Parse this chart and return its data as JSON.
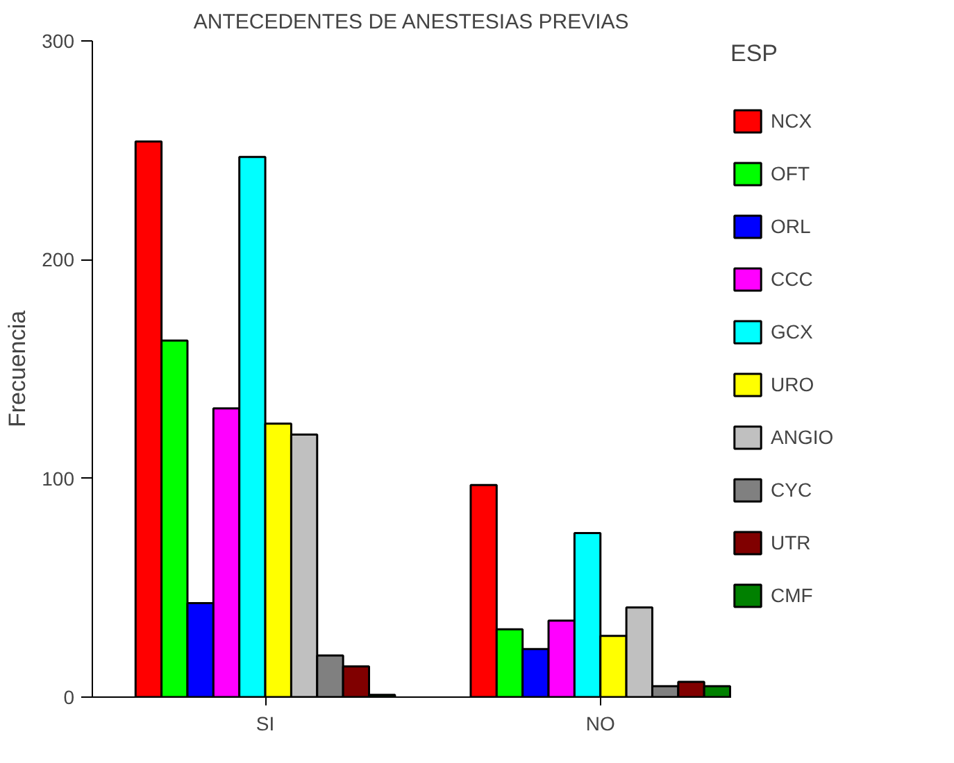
{
  "chart_data": {
    "type": "bar",
    "title": "ANTECEDENTES DE ANESTESIAS PREVIAS",
    "ylabel": "Frecuencia",
    "legend_title": "ESP",
    "categories": [
      "SI",
      "NO"
    ],
    "series": [
      {
        "name": "NCX",
        "color": "#ff0000",
        "values": [
          254,
          97
        ]
      },
      {
        "name": "OFT",
        "color": "#00ff00",
        "values": [
          163,
          31
        ]
      },
      {
        "name": "ORL",
        "color": "#0000ff",
        "values": [
          43,
          22
        ]
      },
      {
        "name": "CCC",
        "color": "#ff00ff",
        "values": [
          132,
          35
        ]
      },
      {
        "name": "GCX",
        "color": "#00ffff",
        "values": [
          247,
          75
        ]
      },
      {
        "name": "URO",
        "color": "#ffff00",
        "values": [
          125,
          28
        ]
      },
      {
        "name": "ANGIO",
        "color": "#c0c0c0",
        "values": [
          120,
          41
        ]
      },
      {
        "name": "CYC",
        "color": "#808080",
        "values": [
          19,
          5
        ]
      },
      {
        "name": "UTR",
        "color": "#800000",
        "values": [
          14,
          7
        ]
      },
      {
        "name": "CMF",
        "color": "#008000",
        "values": [
          1,
          5
        ]
      }
    ],
    "ylim": [
      0,
      300
    ],
    "yticks": [
      0,
      100,
      200,
      300
    ],
    "grid": false,
    "legend": "right"
  }
}
